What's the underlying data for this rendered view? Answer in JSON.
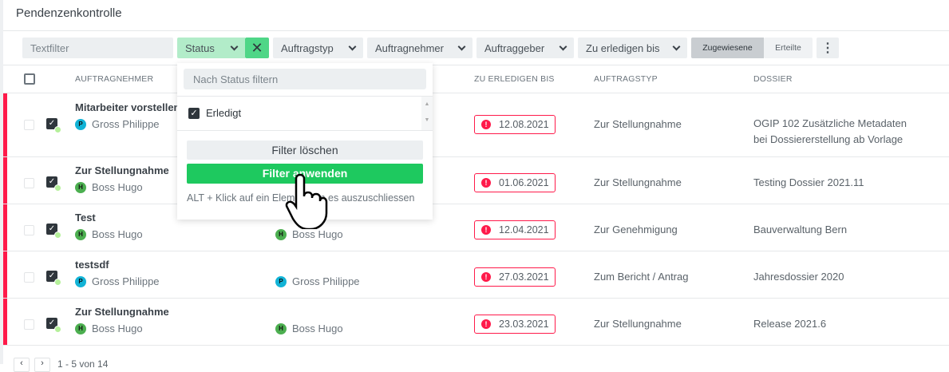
{
  "title": "Pendenzenkontrolle",
  "filters": {
    "text_placeholder": "Textfilter",
    "status": "Status",
    "auftragstyp": "Auftragstyp",
    "auftragnehmer": "Auftragnehmer",
    "auftraggeber": "Auftraggeber",
    "zu_erledigen": "Zu erledigen bis",
    "toggle": [
      "Zugewiesene",
      "Erteilte"
    ],
    "toggle_active": "Zugewiesene"
  },
  "columns": {
    "auftragnehmer": "AUFTRAGNEHMER",
    "zu_erledigen": "ZU ERLEDIGEN BIS",
    "auftragstyp": "AUFTRAGSTYP",
    "dossier": "DOSSIER"
  },
  "status_dropdown": {
    "search_placeholder": "Nach Status filtern",
    "options": [
      {
        "label": "Erledigt",
        "checked": true
      }
    ],
    "clear": "Filter löschen",
    "apply": "Filter anwenden",
    "hint": "ALT + Klick auf ein Element um es auszuschliessen"
  },
  "rows": [
    {
      "title": "Mitarbeiter vorstellen",
      "assignee": "Gross Philippe",
      "assignee_initial": "P",
      "assigner": "",
      "assigner_initial": "",
      "due": "12.08.2021",
      "type": "Zur Stellungnahme",
      "dossier": "OGIP 102 Zusätzliche Metadaten bei Dossiererstellung ab Vorlage"
    },
    {
      "title": "Zur Stellungnahme",
      "assignee": "Boss Hugo",
      "assignee_initial": "H",
      "assigner": "",
      "assigner_initial": "",
      "due": "01.06.2021",
      "type": "Zur Stellungnahme",
      "dossier": "Testing Dossier 2021.11"
    },
    {
      "title": "Test",
      "assignee": "Boss Hugo",
      "assignee_initial": "H",
      "assigner": "Boss Hugo",
      "assigner_initial": "H",
      "due": "12.04.2021",
      "type": "Zur Genehmigung",
      "dossier": "Bauverwaltung Bern"
    },
    {
      "title": "testsdf",
      "assignee": "Gross Philippe",
      "assignee_initial": "P",
      "assigner": "Gross Philippe",
      "assigner_initial": "P",
      "due": "27.03.2021",
      "type": "Zum Bericht / Antrag",
      "dossier": "Jahresdossier 2020"
    },
    {
      "title": "Zur Stellungnahme",
      "assignee": "Boss Hugo",
      "assignee_initial": "H",
      "assigner": "Boss Hugo",
      "assigner_initial": "H",
      "due": "23.03.2021",
      "type": "Zur Stellungnahme",
      "dossier": "Release 2021.6"
    }
  ],
  "pagination": {
    "range": "1 - 5 von 14"
  },
  "colors": {
    "overdue": "#ff1a4a",
    "apply": "#1ec95f",
    "status_active": "#b2ecc9",
    "avatar_P": "#12b3d6",
    "avatar_H": "#4caf50"
  }
}
